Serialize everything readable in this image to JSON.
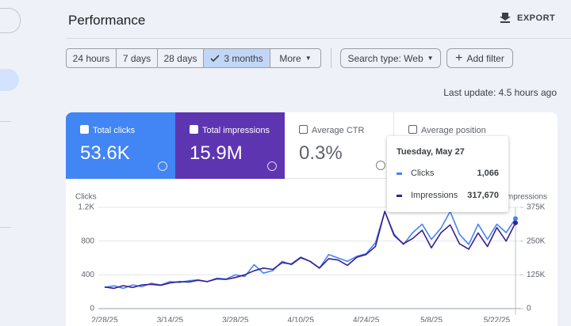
{
  "header": {
    "title": "Performance",
    "export": "EXPORT"
  },
  "filters": {
    "ranges": [
      "24 hours",
      "7 days",
      "28 days",
      "3 months",
      "More"
    ],
    "search_type": "Search type: Web",
    "add_filter": "Add filter"
  },
  "last_update": "Last update: 4.5 hours ago",
  "metrics": [
    {
      "label": "Total clicks",
      "value": "53.6K"
    },
    {
      "label": "Total impressions",
      "value": "15.9M"
    },
    {
      "label": "Average CTR",
      "value": "0.3%"
    },
    {
      "label": "Average position"
    }
  ],
  "chart_data": {
    "type": "line",
    "ylabel": "Clicks",
    "y2label": "Impressions",
    "categories": [
      "2/28/25",
      null,
      null,
      null,
      null,
      null,
      null,
      "3/14/25",
      null,
      null,
      null,
      null,
      null,
      null,
      "3/28/25",
      null,
      null,
      null,
      null,
      null,
      null,
      "4/10/25",
      null,
      null,
      null,
      null,
      null,
      null,
      "4/24/25",
      null,
      null,
      null,
      null,
      null,
      null,
      "5/8/25",
      null,
      null,
      null,
      null,
      null,
      null,
      "5/22/25",
      null,
      null
    ],
    "series": [
      {
        "name": "Clicks",
        "color": "#4285f4",
        "values": [
          250,
          270,
          240,
          280,
          260,
          300,
          280,
          320,
          310,
          330,
          340,
          320,
          360,
          350,
          400,
          380,
          520,
          420,
          450,
          560,
          520,
          600,
          560,
          480,
          640,
          600,
          560,
          620,
          650,
          780,
          1150,
          880,
          760,
          900,
          1000,
          820,
          950,
          1150,
          880,
          760,
          1000,
          820,
          1000,
          900,
          1066
        ]
      },
      {
        "name": "Impressions",
        "color": "#3b1f8e",
        "axis": "y2",
        "values": [
          80000,
          75000,
          85000,
          78000,
          88000,
          90000,
          86000,
          95000,
          100000,
          98000,
          105000,
          100000,
          110000,
          108000,
          115000,
          125000,
          140000,
          150000,
          145000,
          170000,
          165000,
          190000,
          175000,
          150000,
          185000,
          180000,
          160000,
          190000,
          200000,
          230000,
          360000,
          270000,
          240000,
          260000,
          290000,
          225000,
          280000,
          310000,
          240000,
          220000,
          280000,
          230000,
          300000,
          250000,
          317670
        ]
      }
    ],
    "ylim": [
      0,
      1200
    ],
    "yticks": [
      0,
      400,
      800,
      {
        "value": 1200,
        "label": "1.2K"
      }
    ],
    "y2lim": [
      0,
      375000
    ],
    "y2ticks": [
      0,
      {
        "value": 125000,
        "label": "125K"
      },
      {
        "value": 250000,
        "label": "250K"
      },
      {
        "value": 375000,
        "label": "375K"
      }
    ],
    "grid": true,
    "tooltip": {
      "title": "Tuesday, May 27",
      "values": [
        "1,066",
        "317,670"
      ]
    }
  }
}
